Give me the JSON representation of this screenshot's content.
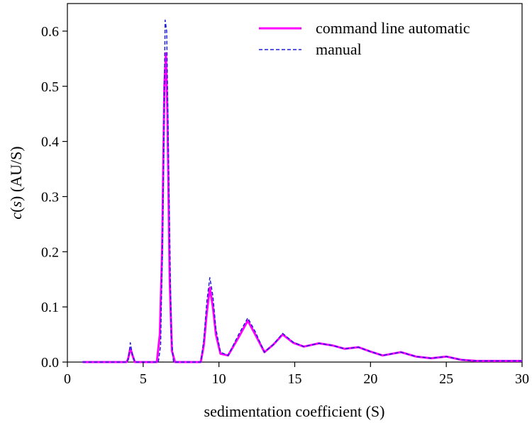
{
  "chart_data": {
    "type": "line",
    "xlabel": "sedimentation coefficient (S)",
    "ylabel": "c(s) (AU/S)",
    "ylabel_parts": {
      "c": "c",
      "open": "(",
      "s": "s",
      "rest": ") (AU/S)"
    },
    "xlim": [
      0,
      30
    ],
    "ylim": [
      0,
      0.65
    ],
    "xticks": [
      0,
      5,
      10,
      15,
      20,
      25,
      30
    ],
    "xtick_labels": [
      "0",
      "5",
      "10",
      "15",
      "20",
      "25",
      "30"
    ],
    "yticks": [
      0.0,
      0.1,
      0.2,
      0.3,
      0.4,
      0.5,
      0.6
    ],
    "ytick_labels": [
      "0.0",
      "0.1",
      "0.2",
      "0.3",
      "0.4",
      "0.5",
      "0.6"
    ],
    "grid": false,
    "legend_position": "top-right",
    "series": [
      {
        "name": "command line automatic",
        "color": "#ff00ff",
        "style": "solid",
        "points": [
          [
            1.0,
            0.0
          ],
          [
            3.9,
            0.0
          ],
          [
            4.0,
            0.005
          ],
          [
            4.15,
            0.025
          ],
          [
            4.3,
            0.012
          ],
          [
            4.45,
            0.0
          ],
          [
            5.9,
            0.0
          ],
          [
            6.1,
            0.05
          ],
          [
            6.25,
            0.2
          ],
          [
            6.4,
            0.5
          ],
          [
            6.5,
            0.56
          ],
          [
            6.6,
            0.45
          ],
          [
            6.75,
            0.15
          ],
          [
            6.9,
            0.02
          ],
          [
            7.1,
            0.0
          ],
          [
            8.8,
            0.0
          ],
          [
            9.0,
            0.03
          ],
          [
            9.2,
            0.09
          ],
          [
            9.4,
            0.135
          ],
          [
            9.6,
            0.1
          ],
          [
            9.8,
            0.05
          ],
          [
            10.1,
            0.015
          ],
          [
            10.6,
            0.012
          ],
          [
            11.3,
            0.045
          ],
          [
            11.9,
            0.075
          ],
          [
            12.4,
            0.05
          ],
          [
            13.0,
            0.018
          ],
          [
            13.6,
            0.032
          ],
          [
            14.2,
            0.05
          ],
          [
            14.9,
            0.035
          ],
          [
            15.6,
            0.028
          ],
          [
            16.6,
            0.034
          ],
          [
            17.5,
            0.03
          ],
          [
            18.3,
            0.024
          ],
          [
            19.2,
            0.027
          ],
          [
            20.0,
            0.019
          ],
          [
            20.8,
            0.012
          ],
          [
            22.0,
            0.018
          ],
          [
            23.0,
            0.01
          ],
          [
            24.0,
            0.007
          ],
          [
            25.0,
            0.01
          ],
          [
            26.0,
            0.004
          ],
          [
            27.0,
            0.002
          ],
          [
            28.0,
            0.002
          ],
          [
            30.0,
            0.002
          ]
        ]
      },
      {
        "name": "manual",
        "color": "#1f1fd6",
        "style": "dashed",
        "points": [
          [
            1.0,
            0.0
          ],
          [
            3.95,
            0.0
          ],
          [
            4.05,
            0.01
          ],
          [
            4.15,
            0.035
          ],
          [
            4.28,
            0.015
          ],
          [
            4.45,
            0.0
          ],
          [
            6.0,
            0.0
          ],
          [
            6.15,
            0.03
          ],
          [
            6.3,
            0.25
          ],
          [
            6.45,
            0.62
          ],
          [
            6.55,
            0.6
          ],
          [
            6.7,
            0.32
          ],
          [
            6.85,
            0.05
          ],
          [
            7.0,
            0.0
          ],
          [
            8.8,
            0.0
          ],
          [
            9.0,
            0.04
          ],
          [
            9.2,
            0.11
          ],
          [
            9.4,
            0.153
          ],
          [
            9.6,
            0.12
          ],
          [
            9.8,
            0.06
          ],
          [
            10.1,
            0.018
          ],
          [
            10.6,
            0.012
          ],
          [
            11.3,
            0.05
          ],
          [
            11.9,
            0.08
          ],
          [
            12.4,
            0.055
          ],
          [
            13.0,
            0.018
          ],
          [
            13.6,
            0.032
          ],
          [
            14.2,
            0.052
          ],
          [
            14.9,
            0.036
          ],
          [
            15.6,
            0.028
          ],
          [
            16.6,
            0.034
          ],
          [
            17.5,
            0.03
          ],
          [
            18.3,
            0.024
          ],
          [
            19.2,
            0.027
          ],
          [
            20.0,
            0.019
          ],
          [
            20.8,
            0.012
          ],
          [
            22.0,
            0.018
          ],
          [
            23.0,
            0.01
          ],
          [
            24.0,
            0.007
          ],
          [
            25.0,
            0.01
          ],
          [
            26.0,
            0.004
          ],
          [
            27.0,
            0.002
          ],
          [
            28.0,
            0.002
          ],
          [
            30.0,
            0.002
          ]
        ]
      }
    ]
  }
}
